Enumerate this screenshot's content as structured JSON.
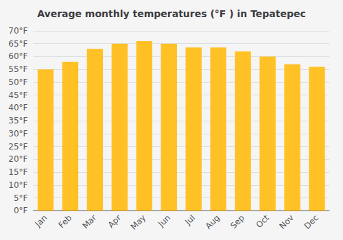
{
  "chart_data": {
    "type": "bar",
    "title": "Average monthly temperatures (°F ) in Tepatepec",
    "categories": [
      "Jan",
      "Feb",
      "Mar",
      "Apr",
      "May",
      "Jun",
      "Jul",
      "Aug",
      "Sep",
      "Oct",
      "Nov",
      "Dec"
    ],
    "values": [
      55,
      58,
      63,
      65,
      66,
      65,
      63.5,
      63.5,
      62,
      60,
      57,
      56
    ],
    "color": "#FFC125",
    "ylim": [
      0,
      70
    ],
    "yticks": [
      {
        "value": 0,
        "label": "0°F"
      },
      {
        "value": 5,
        "label": "5°F"
      },
      {
        "value": 10,
        "label": "10°F"
      },
      {
        "value": 15,
        "label": "15°F"
      },
      {
        "value": 20,
        "label": "20°F"
      },
      {
        "value": 25,
        "label": "25°F"
      },
      {
        "value": 30,
        "label": "30°F"
      },
      {
        "value": 35,
        "label": "35°F"
      },
      {
        "value": 40,
        "label": "40°F"
      },
      {
        "value": 45,
        "label": "45°F"
      },
      {
        "value": 50,
        "label": "50°F"
      },
      {
        "value": 55,
        "label": "55°F"
      },
      {
        "value": 60,
        "label": "60°F"
      },
      {
        "value": 65,
        "label": "65°F"
      },
      {
        "value": 70,
        "label": "70°F"
      }
    ],
    "grid": true
  }
}
